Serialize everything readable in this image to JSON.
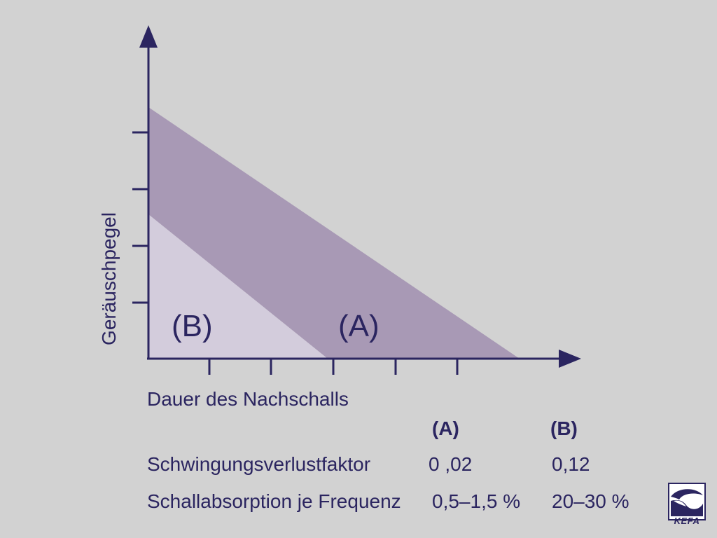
{
  "colors": {
    "background": "#d2d2d2",
    "axis": "#2b2560",
    "band_a": "#a899b5",
    "region_b": "#d3ccdc",
    "text": "#2b2560"
  },
  "diagram": {
    "y_axis_label": "Geräuschpegel",
    "x_axis_label": "Dauer des Nachschalls",
    "region_a_label": "(A)",
    "region_b_label": "(B)"
  },
  "table": {
    "headers": [
      "(A)",
      "(B)"
    ],
    "rows": [
      {
        "label": "Schwingungsverlustfaktor",
        "a": "0 ,02",
        "b": "0,12"
      },
      {
        "label": "Schallabsorption je Frequenz",
        "a": "0,5–1,5 %",
        "b": "20–30 %"
      }
    ]
  },
  "logo": {
    "text": "KEFA"
  }
}
